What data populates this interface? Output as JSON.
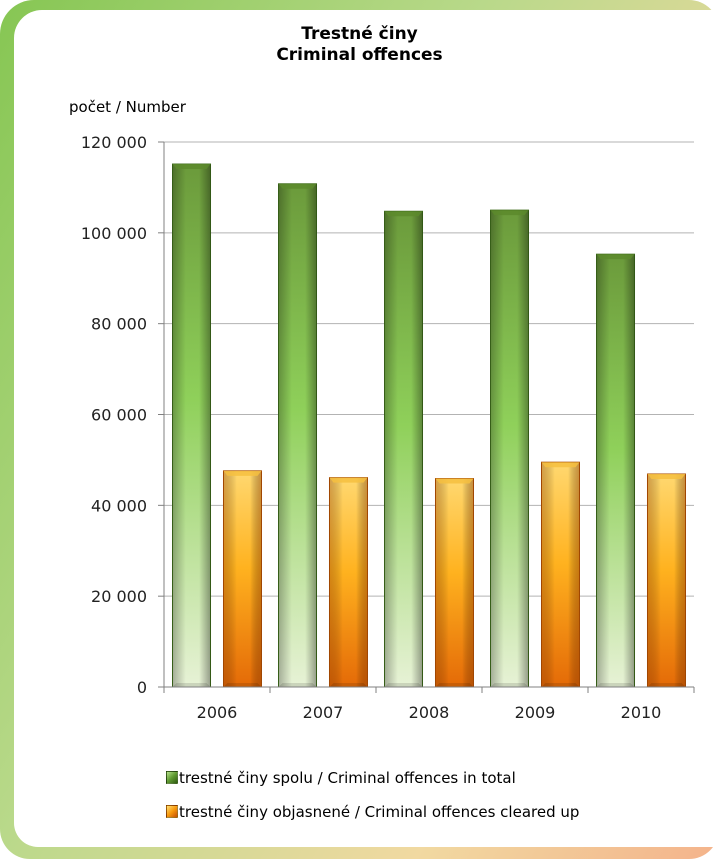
{
  "title_line1": "Trestné činy",
  "title_line2": "Criminal offences",
  "chart_data": {
    "type": "bar",
    "title": "Trestné činy / Criminal offences",
    "ylabel": "počet / Number",
    "xlabel": "",
    "categories": [
      "2006",
      "2007",
      "2008",
      "2009",
      "2010"
    ],
    "series": [
      {
        "name": "trestné činy spolu / Criminal offences in total",
        "values": [
          115150,
          110800,
          104750,
          105000,
          95300
        ],
        "color": "#6ea23d"
      },
      {
        "name": "trestné činy objasnené / Criminal offences cleared up",
        "values": [
          47600,
          46100,
          45900,
          49500,
          46900
        ],
        "color": "#f59b12"
      }
    ],
    "ylim": [
      0,
      120000
    ],
    "yticks": [
      0,
      20000,
      40000,
      60000,
      80000,
      100000,
      120000
    ],
    "ytick_labels": [
      "0",
      "20 000",
      "40 000",
      "60 000",
      "80 000",
      "100 000",
      "120 000"
    ],
    "grid": true,
    "legend_position": "bottom"
  }
}
